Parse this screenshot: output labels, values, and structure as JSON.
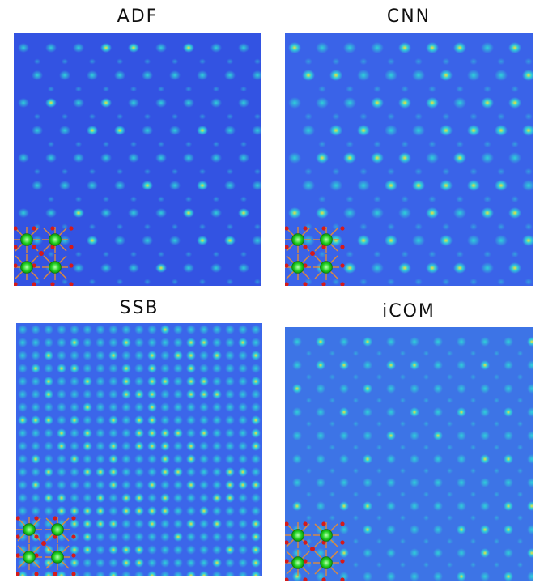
{
  "figure": {
    "panels": [
      {
        "id": "adf",
        "title": "ADF"
      },
      {
        "id": "cnn",
        "title": "CNN"
      },
      {
        "id": "ssb",
        "title": "SSB"
      },
      {
        "id": "icom",
        "title": "iCOM"
      }
    ],
    "colors": {
      "background_blue": "#2f4fe6",
      "spot_cyan": "#2fd0d8",
      "spot_yellow": "#f3e03a",
      "atom_green": "#22d422",
      "atom_red": "#d61a1a",
      "bond_orange": "#e08a3a"
    }
  }
}
